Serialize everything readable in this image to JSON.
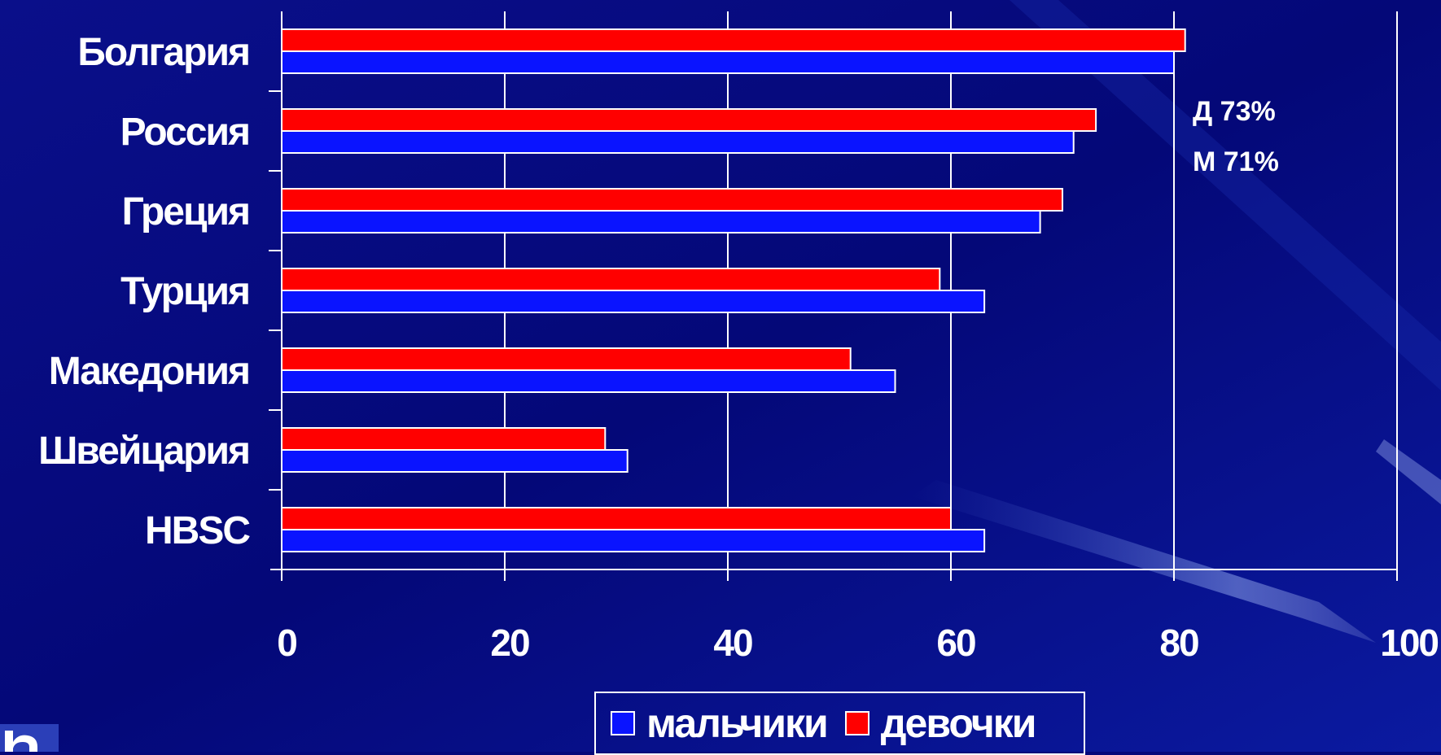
{
  "chart_data": {
    "type": "bar",
    "orientation": "horizontal",
    "categories": [
      "Болгария",
      "Россия",
      "Греция",
      "Турция",
      "Македония",
      "Швейцария",
      "HBSC"
    ],
    "series": [
      {
        "name": "мальчики",
        "color": "#0a14ff",
        "values": [
          80,
          71,
          68,
          63,
          55,
          31,
          63
        ]
      },
      {
        "name": "девочки",
        "color": "#ff0000",
        "values": [
          81,
          73,
          70,
          59,
          51,
          29,
          60
        ]
      }
    ],
    "xlim": [
      0,
      100
    ],
    "xticks": [
      0,
      20,
      40,
      60,
      80,
      100
    ],
    "grid": true,
    "legend_position": "bottom",
    "title": "",
    "xlabel": "",
    "ylabel": ""
  },
  "annotations": {
    "girls": "Д 73%",
    "boys": "М 71%"
  },
  "colors": {
    "background": "#05087a",
    "boys": "#0a14ff",
    "girls": "#ff0000",
    "grid": "#ffffff"
  }
}
